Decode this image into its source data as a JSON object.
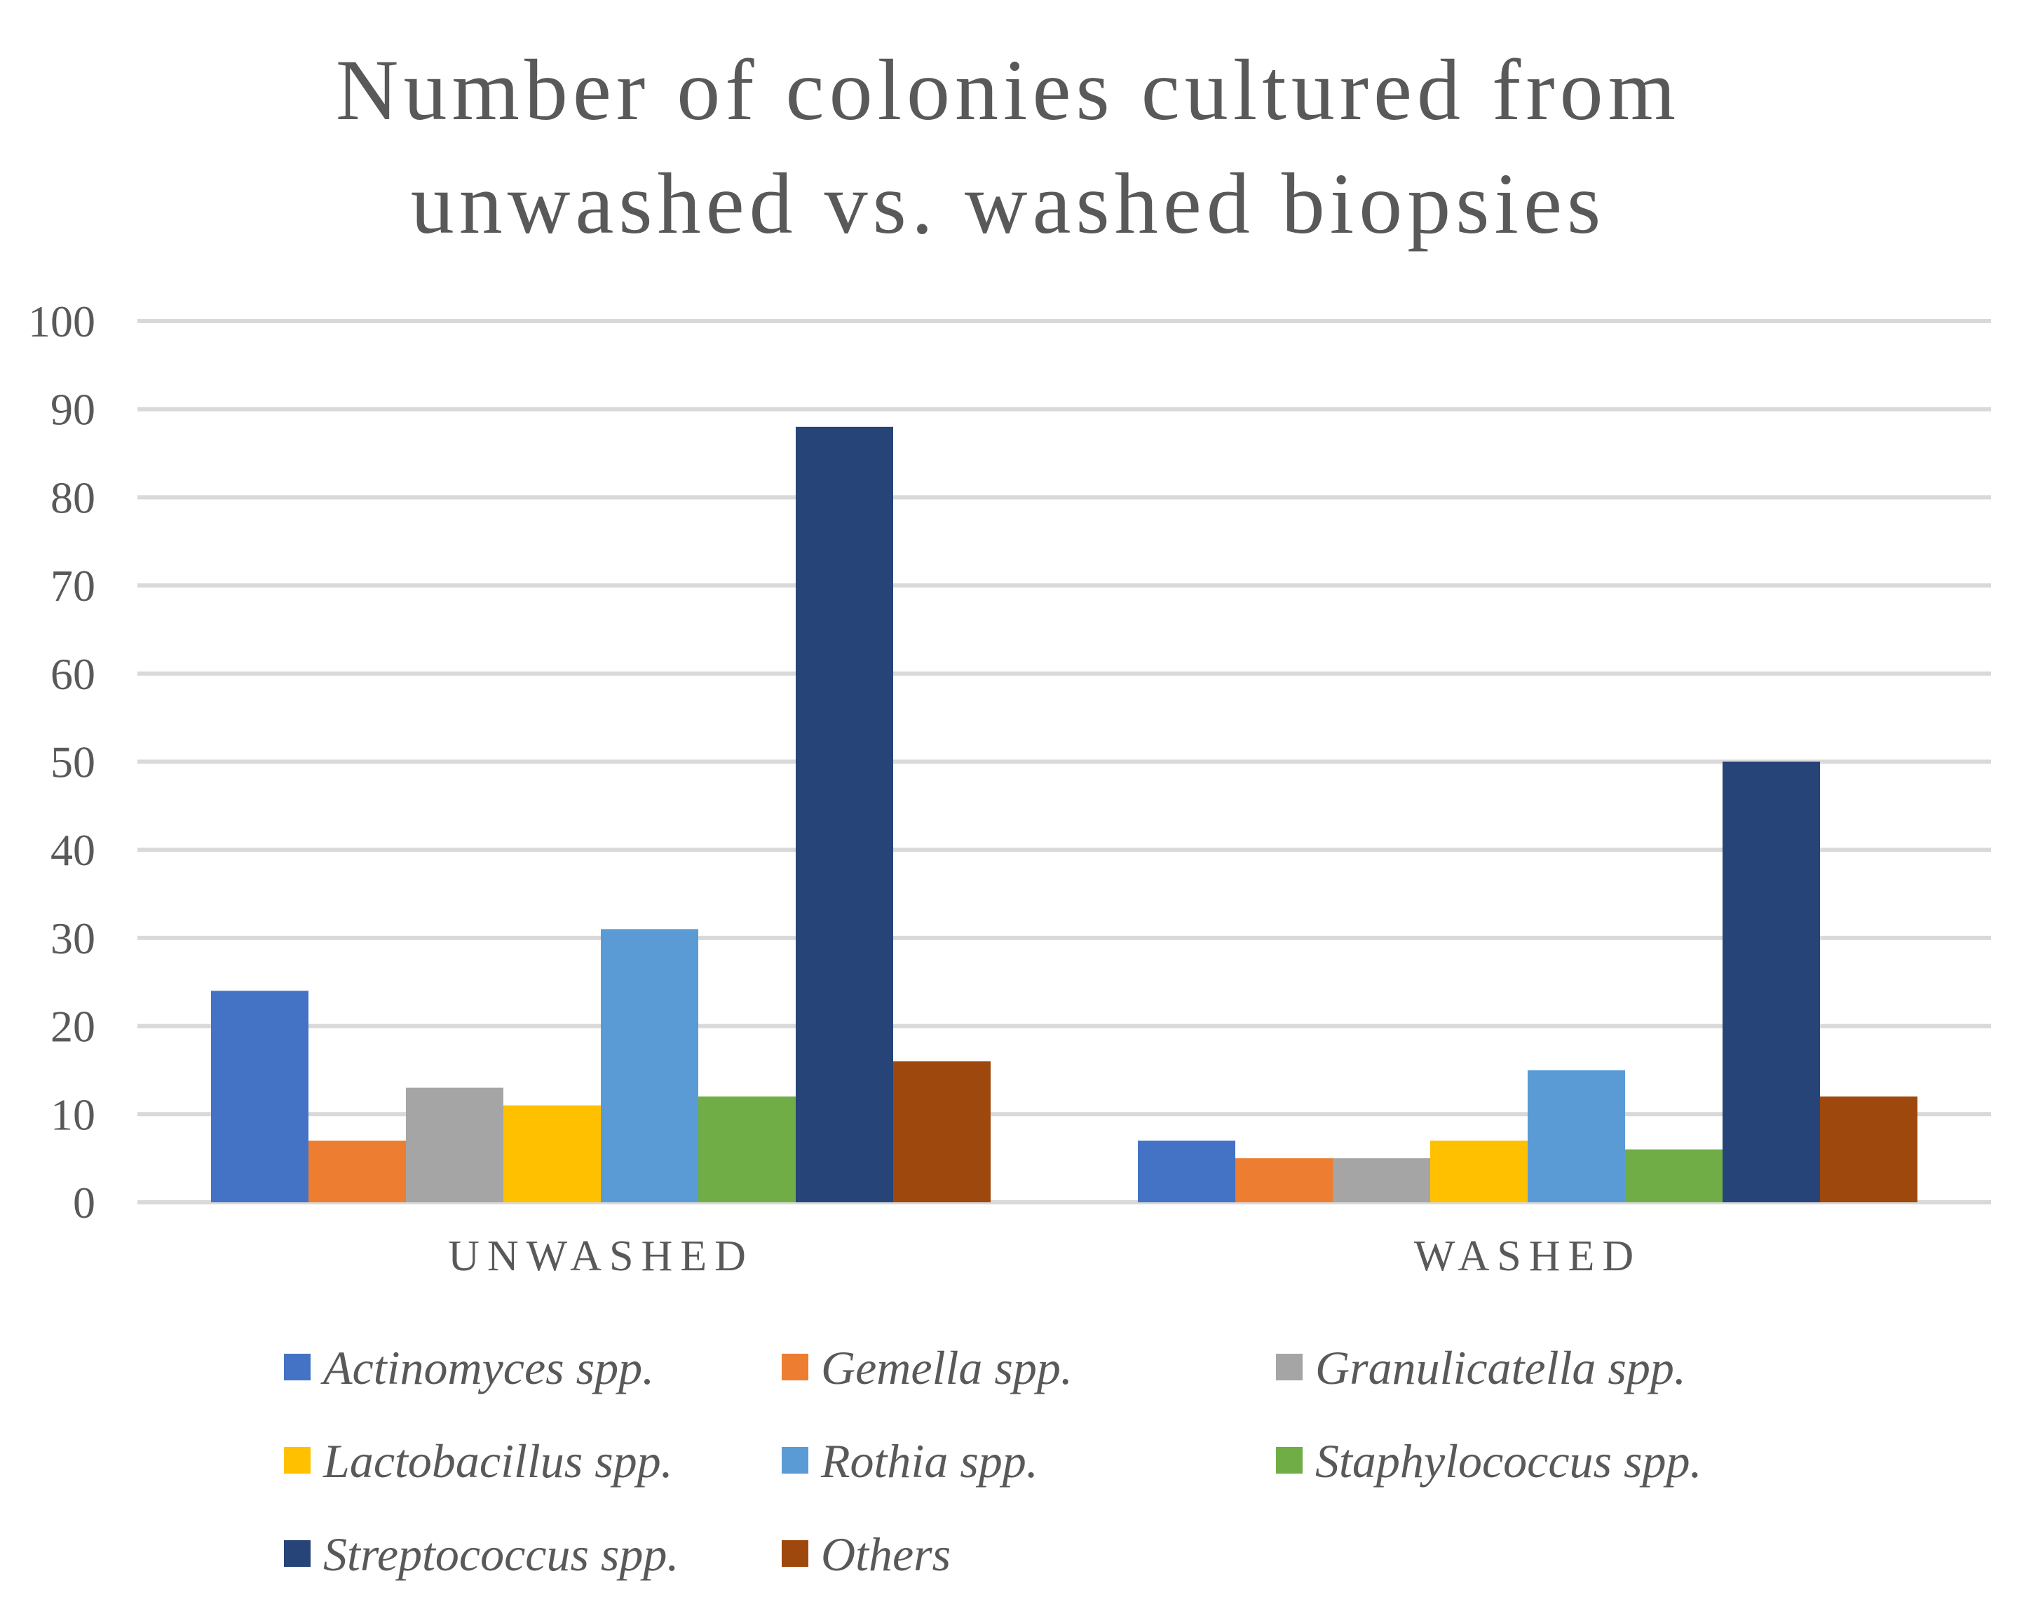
{
  "chart_data": {
    "type": "bar",
    "title_lines": [
      "Number of colonies cultured from",
      "unwashed vs. washed biopsies"
    ],
    "xlabel": "",
    "ylabel": "",
    "categories": [
      "UNWASHED",
      "WASHED"
    ],
    "ylim": [
      0,
      100
    ],
    "yticks": [
      0,
      10,
      20,
      30,
      40,
      50,
      60,
      70,
      80,
      90,
      100
    ],
    "grid": true,
    "legend_position": "bottom",
    "series": [
      {
        "name": "Actinomyces spp.",
        "color": "#4472C4",
        "values": [
          24,
          7
        ]
      },
      {
        "name": "Gemella spp.",
        "color": "#ED7D31",
        "values": [
          7,
          5
        ]
      },
      {
        "name": "Granulicatella spp.",
        "color": "#A5A5A5",
        "values": [
          13,
          5
        ]
      },
      {
        "name": "Lactobacillus spp.",
        "color": "#FFC000",
        "values": [
          11,
          7
        ]
      },
      {
        "name": "Rothia spp.",
        "color": "#5B9BD5",
        "values": [
          31,
          15
        ]
      },
      {
        "name": "Staphylococcus spp.",
        "color": "#70AD47",
        "values": [
          12,
          6
        ]
      },
      {
        "name": "Streptococcus spp.",
        "color": "#264478",
        "values": [
          88,
          50
        ]
      },
      {
        "name": "Others",
        "color": "#9E480E",
        "values": [
          16,
          12
        ]
      }
    ]
  }
}
